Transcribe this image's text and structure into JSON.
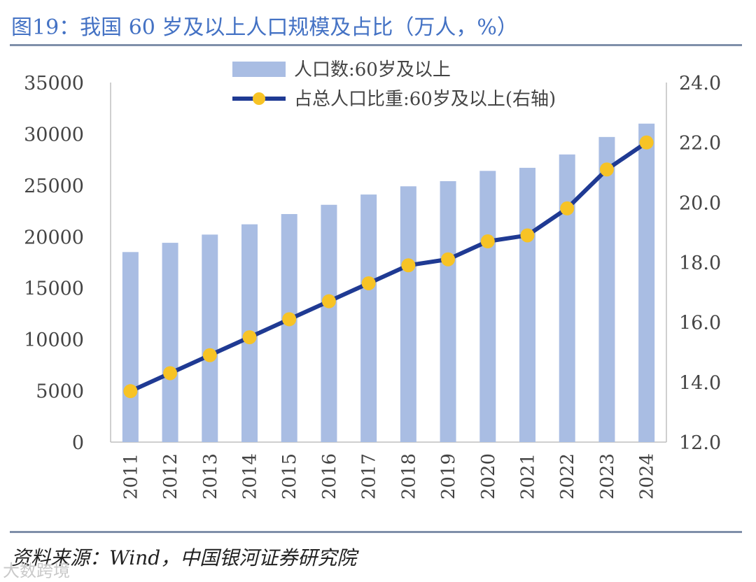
{
  "header": {
    "title": "图19：我国 60 岁及以上人口规模及占比（万人，%）"
  },
  "footer": {
    "source": "资料来源：Wind，中国银河证券研究院",
    "watermark": "大数跨境"
  },
  "colors": {
    "bar": "#a9bde3",
    "line": "#1f3a93",
    "marker": "#f7c325",
    "axis": "#bfbfbf",
    "title": "#4472c4"
  },
  "chart_data": {
    "type": "bar",
    "categories": [
      "2011",
      "2012",
      "2013",
      "2014",
      "2015",
      "2016",
      "2017",
      "2018",
      "2019",
      "2020",
      "2021",
      "2022",
      "2023",
      "2024"
    ],
    "series": [
      {
        "name": "人口数:60岁及以上",
        "type": "bar",
        "axis": "left",
        "values": [
          18500,
          19400,
          20200,
          21200,
          22200,
          23100,
          24100,
          24900,
          25400,
          26400,
          26700,
          28000,
          29700,
          31000
        ]
      },
      {
        "name": "占总人口比重:60岁及以上(右轴)",
        "type": "line",
        "axis": "right",
        "values": [
          13.7,
          14.3,
          14.9,
          15.5,
          16.1,
          16.7,
          17.3,
          17.9,
          18.1,
          18.7,
          18.9,
          19.8,
          21.1,
          22.0
        ]
      }
    ],
    "y_left": {
      "min": 0,
      "max": 35000,
      "ticks": [
        "0",
        "5000",
        "10000",
        "15000",
        "20000",
        "25000",
        "30000",
        "35000"
      ]
    },
    "y_right": {
      "min": 12.0,
      "max": 24.0,
      "ticks": [
        "12.0",
        "14.0",
        "16.0",
        "18.0",
        "20.0",
        "22.0",
        "24.0"
      ]
    },
    "legend": [
      "人口数:60岁及以上",
      "占总人口比重:60岁及以上(右轴)"
    ],
    "legend_position": "top-center"
  }
}
